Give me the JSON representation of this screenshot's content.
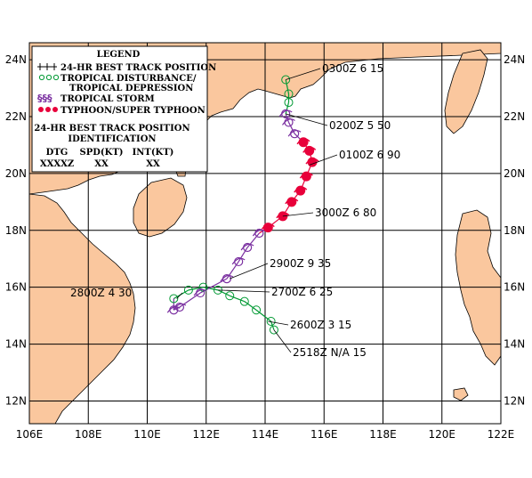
{
  "map": {
    "lon_range": [
      106,
      122
    ],
    "lat_range": [
      11.2,
      24.6
    ],
    "lon_ticks": [
      "106E",
      "108E",
      "110E",
      "112E",
      "114E",
      "116E",
      "118E",
      "120E",
      "122E"
    ],
    "lat_ticks": [
      "12N",
      "14N",
      "16N",
      "18N",
      "20N",
      "22N",
      "24N"
    ],
    "colors": {
      "land": "#fac79e",
      "sea": "#ffffff",
      "grid": "#000000",
      "disturbance": "#009933",
      "storm": "#7a2fa0",
      "typhoon": "#e8003a"
    }
  },
  "legend": {
    "title": "LEGEND",
    "items": [
      {
        "label": "24-HR BEST TRACK POSITION",
        "icon": "track-position-icon"
      },
      {
        "label": "TROPICAL DISTURBANCE/",
        "label2": "TROPICAL DEPRESSION",
        "icon": "disturbance-icon"
      },
      {
        "label": "TROPICAL STORM",
        "icon": "tropical-storm-icon"
      },
      {
        "label": "TYPHOON/SUPER TYPHOON",
        "icon": "typhoon-icon"
      }
    ],
    "id_title_1": "24-HR BEST TRACK POSITION",
    "id_title_2": "IDENTIFICATION",
    "columns": [
      "DTG",
      "SPD(KT)",
      "INT(KT)"
    ],
    "formats": [
      "XXXXZ",
      "XX",
      "XX"
    ]
  },
  "track": [
    {
      "lon": 114.3,
      "lat": 14.5,
      "cat": "TD"
    },
    {
      "lon": 114.2,
      "lat": 14.8,
      "cat": "TD"
    },
    {
      "lon": 113.7,
      "lat": 15.2,
      "cat": "TD"
    },
    {
      "lon": 113.3,
      "lat": 15.5,
      "cat": "TD"
    },
    {
      "lon": 112.8,
      "lat": 15.7,
      "cat": "TD"
    },
    {
      "lon": 112.4,
      "lat": 15.9,
      "cat": "TD"
    },
    {
      "lon": 111.9,
      "lat": 16.0,
      "cat": "TD"
    },
    {
      "lon": 111.4,
      "lat": 15.9,
      "cat": "TD"
    },
    {
      "lon": 110.9,
      "lat": 15.6,
      "cat": "TD"
    },
    {
      "lon": 110.9,
      "lat": 15.2,
      "cat": "TS"
    },
    {
      "lon": 111.1,
      "lat": 15.3,
      "cat": "TS"
    },
    {
      "lon": 111.8,
      "lat": 15.8,
      "cat": "TS"
    },
    {
      "lon": 112.7,
      "lat": 16.3,
      "cat": "TS"
    },
    {
      "lon": 113.1,
      "lat": 16.9,
      "cat": "TS"
    },
    {
      "lon": 113.4,
      "lat": 17.4,
      "cat": "TS"
    },
    {
      "lon": 113.8,
      "lat": 17.9,
      "cat": "TS"
    },
    {
      "lon": 114.1,
      "lat": 18.1,
      "cat": "TY"
    },
    {
      "lon": 114.6,
      "lat": 18.5,
      "cat": "TY"
    },
    {
      "lon": 114.9,
      "lat": 19.0,
      "cat": "TY"
    },
    {
      "lon": 115.2,
      "lat": 19.4,
      "cat": "TY"
    },
    {
      "lon": 115.4,
      "lat": 19.9,
      "cat": "TY"
    },
    {
      "lon": 115.6,
      "lat": 20.4,
      "cat": "TY"
    },
    {
      "lon": 115.5,
      "lat": 20.8,
      "cat": "TY"
    },
    {
      "lon": 115.3,
      "lat": 21.1,
      "cat": "TY"
    },
    {
      "lon": 115.0,
      "lat": 21.4,
      "cat": "TS"
    },
    {
      "lon": 114.8,
      "lat": 21.8,
      "cat": "TS"
    },
    {
      "lon": 114.7,
      "lat": 22.1,
      "cat": "TS"
    },
    {
      "lon": 114.8,
      "lat": 22.5,
      "cat": "TD"
    },
    {
      "lon": 114.8,
      "lat": 22.8,
      "cat": "TD"
    },
    {
      "lon": 114.7,
      "lat": 23.3,
      "cat": "TD"
    }
  ],
  "fixes": [
    {
      "dtg": "2518Z",
      "spd": "N/A",
      "int": "15",
      "lon": 114.3,
      "lat": 14.5
    },
    {
      "dtg": "2600Z",
      "spd": "3",
      "int": "15",
      "lon": 114.1,
      "lat": 14.8
    },
    {
      "dtg": "2700Z",
      "spd": "6",
      "int": "25",
      "lon": 112.4,
      "lat": 15.9
    },
    {
      "dtg": "2800Z",
      "spd": "4",
      "int": "30",
      "lon": 111.0,
      "lat": 15.6
    },
    {
      "dtg": "2900Z",
      "spd": "9",
      "int": "35",
      "lon": 112.8,
      "lat": 16.3
    },
    {
      "dtg": "3000Z",
      "spd": "6",
      "int": "80",
      "lon": 114.6,
      "lat": 18.5
    },
    {
      "dtg": "0100Z",
      "spd": "6",
      "int": "90",
      "lon": 115.5,
      "lat": 20.3
    },
    {
      "dtg": "0200Z",
      "spd": "5",
      "int": "50",
      "lon": 114.7,
      "lat": 22.1
    },
    {
      "dtg": "0300Z",
      "spd": "6",
      "int": "15",
      "lon": 114.7,
      "lat": 23.3
    }
  ]
}
